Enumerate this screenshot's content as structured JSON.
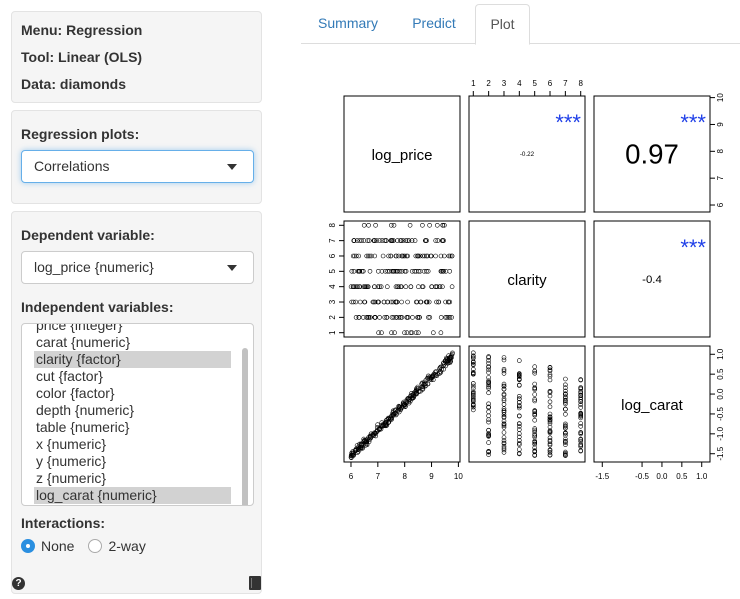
{
  "info": {
    "menu": "Menu: Regression",
    "tool": "Tool: Linear (OLS)",
    "data": "Data: diamonds"
  },
  "plots": {
    "label": "Regression plots:",
    "selected": "Correlations"
  },
  "dependent": {
    "label": "Dependent variable:",
    "selected": "log_price {numeric}"
  },
  "independent": {
    "label": "Independent variables:",
    "options": [
      {
        "label": "price {integer}",
        "selected": false
      },
      {
        "label": "carat {numeric}",
        "selected": false
      },
      {
        "label": "clarity {factor}",
        "selected": true
      },
      {
        "label": "cut {factor}",
        "selected": false
      },
      {
        "label": "color {factor}",
        "selected": false
      },
      {
        "label": "depth {numeric}",
        "selected": false
      },
      {
        "label": "table {numeric}",
        "selected": false
      },
      {
        "label": "x {numeric}",
        "selected": false
      },
      {
        "label": "y {numeric}",
        "selected": false
      },
      {
        "label": "z {numeric}",
        "selected": false
      },
      {
        "label": "log_carat {numeric}",
        "selected": true
      }
    ]
  },
  "interactions": {
    "label": "Interactions:",
    "options": [
      {
        "label": "None",
        "checked": true
      },
      {
        "label": "2-way",
        "checked": false
      }
    ]
  },
  "icons": {
    "help": "question-circle-icon",
    "report": "book-icon",
    "help_glyph": "?"
  },
  "tabs": [
    {
      "label": "Summary",
      "active": false
    },
    {
      "label": "Predict",
      "active": false
    },
    {
      "label": "Plot",
      "active": true
    }
  ],
  "colors": {
    "stars": "#2040e8",
    "accent": "#337ab7",
    "selected_option": "#d2d2d2"
  },
  "chart_data": {
    "type": "scatter",
    "variables": [
      "log_price",
      "clarity",
      "log_carat"
    ],
    "correlations": [
      {
        "pair": [
          "log_price",
          "clarity"
        ],
        "r": "-0.22",
        "stars": "***"
      },
      {
        "pair": [
          "log_price",
          "log_carat"
        ],
        "r": "0.97",
        "stars": "***"
      },
      {
        "pair": [
          "clarity",
          "log_carat"
        ],
        "r": "-0.4",
        "stars": "***"
      }
    ],
    "axes": {
      "top": {
        "variable": "clarity",
        "ticks": [
          "1",
          "2",
          "3",
          "4",
          "5",
          "6",
          "7",
          "8"
        ]
      },
      "right_top": {
        "variable": "log_price",
        "ticks": [
          "6",
          "7",
          "8",
          "9",
          "10"
        ]
      },
      "left_middle": {
        "variable": "clarity",
        "ticks": [
          "1",
          "2",
          "3",
          "4",
          "5",
          "6",
          "7",
          "8"
        ]
      },
      "right_bottom": {
        "variable": "log_carat",
        "ticks": [
          "-1.5",
          "-1.0",
          "-0.5",
          "0.0",
          "0.5",
          "1.0"
        ]
      },
      "bottom_left": {
        "variable": "log_price",
        "ticks": [
          "6",
          "7",
          "8",
          "9",
          "10"
        ]
      },
      "bottom_right": {
        "variable": "log_carat",
        "ticks": [
          "-1.5",
          "-0.5",
          "0.0",
          "0.5",
          "1.0"
        ]
      }
    },
    "ranges": {
      "log_price": [
        5.9,
        9.9
      ],
      "clarity": [
        1,
        8
      ],
      "log_carat": [
        -1.6,
        1.1
      ]
    },
    "scatter_clarity_vs_log_price": {
      "clarity_levels": [
        1,
        2,
        3,
        4,
        5,
        6,
        7,
        8
      ]
    },
    "scatter_log_carat_vs_log_price": {
      "trend": "strong positive linear"
    },
    "scatter_log_carat_vs_clarity": {
      "clarity_levels": [
        1,
        2,
        3,
        4,
        5,
        6,
        7,
        8
      ]
    }
  }
}
